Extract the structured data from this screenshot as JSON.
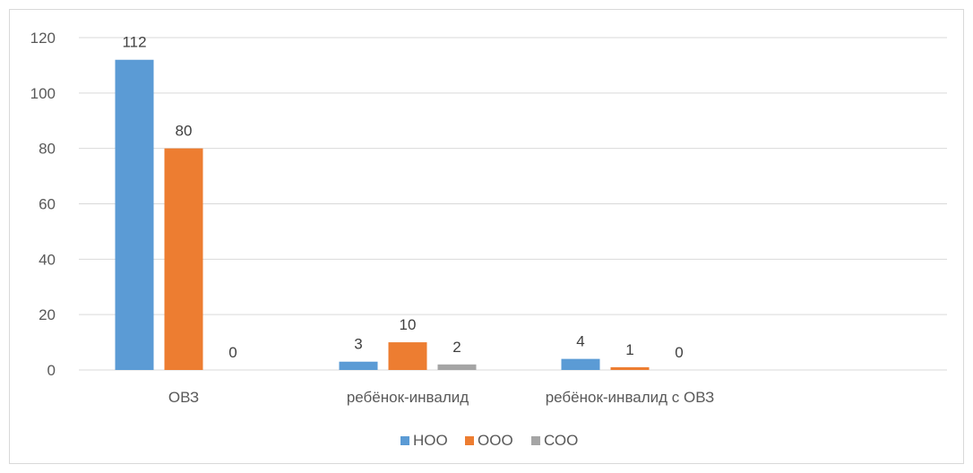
{
  "chart_data": {
    "type": "bar",
    "title": "",
    "xlabel": "",
    "ylabel": "",
    "categories": [
      "ОВЗ",
      "ребёнок-инвалид",
      "ребёнок-инвалид с ОВЗ"
    ],
    "series": [
      {
        "name": "НОО",
        "values": [
          112,
          3,
          4
        ],
        "color": "#5b9bd5"
      },
      {
        "name": "ООО",
        "values": [
          80,
          10,
          1
        ],
        "color": "#ed7d31"
      },
      {
        "name": "СОО",
        "values": [
          0,
          2,
          0
        ],
        "color": "#a5a5a5"
      }
    ],
    "ylim": [
      0,
      120
    ],
    "yticks": [
      0,
      20,
      40,
      60,
      80,
      100,
      120
    ],
    "grid": true,
    "legend_position": "bottom",
    "data_labels": true
  }
}
